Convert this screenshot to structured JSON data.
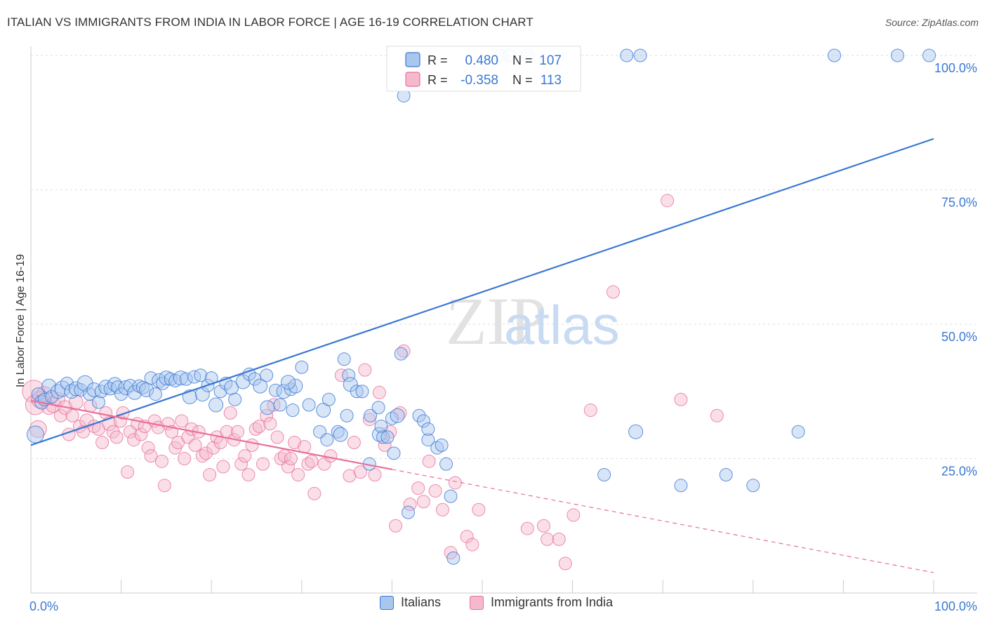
{
  "title": "ITALIAN VS IMMIGRANTS FROM INDIA IN LABOR FORCE | AGE 16-19 CORRELATION CHART",
  "source": "Source: ZipAtlas.com",
  "watermark": {
    "zip": "ZIP",
    "atlas": "atlas"
  },
  "colors": {
    "blue": "#3a78d4",
    "blue_fill": "#a9c6ee",
    "pink": "#e8709a",
    "pink_fill": "#f5b8cc",
    "axis_label": "#3a78d4",
    "grid": "#dddddd",
    "text": "#333333"
  },
  "legend_top": {
    "rows": [
      {
        "r_label": "R =",
        "r_value": "0.480",
        "n_label": "N =",
        "n_value": "107",
        "color": "blue"
      },
      {
        "r_label": "R =",
        "r_value": "-0.358",
        "n_label": "N =",
        "n_value": "113",
        "color": "pink"
      }
    ]
  },
  "legend_bottom": [
    {
      "label": "Italians",
      "color": "blue"
    },
    {
      "label": "Immigrants from India",
      "color": "pink"
    }
  ],
  "chart_data": {
    "type": "scatter",
    "title": "ITALIAN VS IMMIGRANTS FROM INDIA IN LABOR FORCE | AGE 16-19 CORRELATION CHART",
    "xlabel": "",
    "ylabel": "In Labor Force | Age 16-19",
    "xlim": [
      0,
      100
    ],
    "ylim": [
      0,
      100
    ],
    "x_tick_labels": [
      "0.0%",
      "100.0%"
    ],
    "y_ticks": [
      25,
      50,
      75,
      100
    ],
    "y_tick_labels": [
      "25.0%",
      "50.0%",
      "75.0%",
      "100.0%"
    ],
    "grid": true,
    "legend_position": "top-center",
    "series": [
      {
        "name": "Italians",
        "color": "#3a78d4",
        "r": 0.48,
        "n": 107,
        "trend": {
          "x": [
            0,
            100
          ],
          "y": [
            27.5,
            84.5
          ],
          "dashed_from": null
        },
        "points": [
          [
            0.5,
            29.5,
            12
          ],
          [
            0.8,
            37,
            9
          ],
          [
            1.2,
            35.5,
            10
          ],
          [
            1.5,
            36,
            9
          ],
          [
            2,
            38.5,
            10
          ],
          [
            2.3,
            36.5,
            9
          ],
          [
            3,
            37.5,
            10
          ],
          [
            3.5,
            38,
            11
          ],
          [
            4,
            39,
            9
          ],
          [
            4.5,
            37.5,
            10
          ],
          [
            5,
            38,
            10
          ],
          [
            5.5,
            37.8,
            9
          ],
          [
            6,
            39,
            11
          ],
          [
            6.5,
            37,
            9
          ],
          [
            7,
            37.8,
            10
          ],
          [
            7.5,
            35.5,
            9
          ],
          [
            7.8,
            37.5,
            9
          ],
          [
            8.3,
            38.3,
            10
          ],
          [
            8.8,
            38,
            9
          ],
          [
            9.3,
            38.8,
            10
          ],
          [
            9.6,
            38.3,
            9
          ],
          [
            10,
            37,
            9
          ],
          [
            10.5,
            38.2,
            10
          ],
          [
            11,
            38.6,
            9
          ],
          [
            11.5,
            37.3,
            10
          ],
          [
            12,
            38.5,
            9
          ],
          [
            12.4,
            38.2,
            9
          ],
          [
            12.8,
            37.8,
            10
          ],
          [
            13.3,
            40,
            9
          ],
          [
            13.8,
            37,
            9
          ],
          [
            14.2,
            39.5,
            10
          ],
          [
            14.6,
            39,
            9
          ],
          [
            15,
            40,
            10
          ],
          [
            15.5,
            39.8,
            9
          ],
          [
            16,
            39.5,
            9
          ],
          [
            16.6,
            40,
            10
          ],
          [
            17.2,
            39.8,
            9
          ],
          [
            17.6,
            36.5,
            10
          ],
          [
            18.1,
            40.2,
            9
          ],
          [
            18.8,
            40.5,
            9
          ],
          [
            19,
            37,
            10
          ],
          [
            19.6,
            38.6,
            9
          ],
          [
            20,
            40,
            9
          ],
          [
            20.5,
            35,
            10
          ],
          [
            21,
            37.5,
            9
          ],
          [
            21.6,
            39,
            9
          ],
          [
            22.2,
            38.2,
            10
          ],
          [
            22.6,
            36,
            9
          ],
          [
            23.5,
            39.3,
            10
          ],
          [
            24.2,
            40.7,
            9
          ],
          [
            24.8,
            39.8,
            9
          ],
          [
            25.4,
            38.5,
            10
          ],
          [
            26.1,
            40.5,
            9
          ],
          [
            26.2,
            34.5,
            10
          ],
          [
            27.1,
            37.7,
            9
          ],
          [
            27.6,
            35,
            9
          ],
          [
            28,
            37.5,
            10
          ],
          [
            28.8,
            37.9,
            9
          ],
          [
            29,
            34,
            9
          ],
          [
            29.3,
            38.5,
            10
          ],
          [
            30,
            42,
            9
          ],
          [
            30.8,
            35,
            9
          ],
          [
            32,
            30,
            9
          ],
          [
            32.4,
            34,
            10
          ],
          [
            32.8,
            28.5,
            9
          ],
          [
            33,
            36,
            9
          ],
          [
            34,
            30,
            9
          ],
          [
            34.3,
            29.5,
            10
          ],
          [
            34.7,
            43.5,
            9
          ],
          [
            35.2,
            40.5,
            9
          ],
          [
            35.4,
            38.8,
            10
          ],
          [
            36.1,
            37.5,
            9
          ],
          [
            37.5,
            24,
            9
          ],
          [
            37.6,
            33,
            9
          ],
          [
            38.5,
            34.5,
            9
          ],
          [
            38.6,
            29.5,
            10
          ],
          [
            38.8,
            31,
            9
          ],
          [
            39,
            29,
            9
          ],
          [
            40,
            32.5,
            9
          ],
          [
            40.2,
            26,
            9
          ],
          [
            40.6,
            33,
            10
          ],
          [
            41,
            44.5,
            9
          ],
          [
            41.3,
            92.5,
            9
          ],
          [
            41.8,
            15,
            9
          ],
          [
            43,
            33,
            9
          ],
          [
            44,
            28.5,
            9
          ],
          [
            45,
            27,
            9
          ],
          [
            45.5,
            27.5,
            9
          ],
          [
            46,
            24,
            9
          ],
          [
            46.5,
            18,
            9
          ],
          [
            46.8,
            6.5,
            9
          ],
          [
            53,
            100,
            9
          ],
          [
            52,
            100,
            9
          ],
          [
            55,
            100,
            9
          ],
          [
            66,
            100,
            9
          ],
          [
            67,
            30,
            10
          ],
          [
            63.5,
            22,
            9
          ],
          [
            67.5,
            100,
            9
          ],
          [
            72,
            20,
            9
          ],
          [
            77,
            22,
            9
          ],
          [
            80,
            20,
            9
          ],
          [
            85,
            30,
            9
          ],
          [
            89,
            100,
            9
          ],
          [
            96,
            100,
            9
          ],
          [
            99.5,
            100,
            9
          ],
          [
            39.5,
            29,
            9
          ],
          [
            43.5,
            32,
            9
          ],
          [
            44,
            30.5,
            9
          ],
          [
            36.7,
            37.5,
            9
          ],
          [
            35,
            33,
            9
          ],
          [
            28.5,
            39.2,
            10
          ]
        ]
      },
      {
        "name": "Immigrants from India",
        "color": "#e8709a",
        "r": -0.358,
        "n": 113,
        "trend": {
          "x": [
            0,
            100
          ],
          "y": [
            35.8,
            3.8
          ],
          "dashed_from": 40
        },
        "points": [
          [
            0.3,
            37.5,
            16
          ],
          [
            0.5,
            35,
            14
          ],
          [
            0.8,
            30.5,
            12
          ],
          [
            1,
            36,
            12
          ],
          [
            1.5,
            37,
            11
          ],
          [
            2,
            34.5,
            10
          ],
          [
            2.5,
            35,
            11
          ],
          [
            3,
            36,
            10
          ],
          [
            3.3,
            33,
            9
          ],
          [
            3.8,
            34.5,
            10
          ],
          [
            4.2,
            29.5,
            9
          ],
          [
            4.6,
            33,
            9
          ],
          [
            5,
            35.5,
            10
          ],
          [
            5.4,
            31,
            9
          ],
          [
            5.8,
            30,
            9
          ],
          [
            6.2,
            32,
            10
          ],
          [
            6.6,
            34.8,
            9
          ],
          [
            7,
            31,
            9
          ],
          [
            7.5,
            30.5,
            9
          ],
          [
            7.9,
            28,
            9
          ],
          [
            8.3,
            33.5,
            9
          ],
          [
            8.7,
            31.5,
            10
          ],
          [
            9.1,
            30,
            9
          ],
          [
            9.5,
            29,
            9
          ],
          [
            9.9,
            32,
            9
          ],
          [
            10.2,
            33.5,
            9
          ],
          [
            10.7,
            22.5,
            9
          ],
          [
            11,
            30,
            9
          ],
          [
            11.4,
            28.5,
            9
          ],
          [
            11.8,
            31.5,
            9
          ],
          [
            12.2,
            29.5,
            9
          ],
          [
            12.6,
            31,
            9
          ],
          [
            13,
            27,
            9
          ],
          [
            13.3,
            25.5,
            9
          ],
          [
            13.7,
            32,
            9
          ],
          [
            14.1,
            30.8,
            9
          ],
          [
            14.5,
            24.5,
            9
          ],
          [
            14.8,
            20,
            9
          ],
          [
            15.2,
            31.5,
            9
          ],
          [
            15.6,
            30,
            9
          ],
          [
            16,
            27,
            9
          ],
          [
            16.3,
            28,
            9
          ],
          [
            16.7,
            32,
            9
          ],
          [
            17,
            25,
            9
          ],
          [
            17.4,
            29,
            9
          ],
          [
            17.8,
            30.5,
            9
          ],
          [
            18.2,
            27.5,
            9
          ],
          [
            18.6,
            30,
            9
          ],
          [
            19,
            25.5,
            9
          ],
          [
            19.4,
            26,
            9
          ],
          [
            19.8,
            22,
            9
          ],
          [
            20.2,
            27,
            9
          ],
          [
            20.6,
            29,
            9
          ],
          [
            21,
            28,
            9
          ],
          [
            21.3,
            23.5,
            9
          ],
          [
            21.7,
            30,
            9
          ],
          [
            22.1,
            33.5,
            9
          ],
          [
            22.5,
            28.5,
            9
          ],
          [
            22.9,
            30,
            9
          ],
          [
            23.3,
            24,
            9
          ],
          [
            23.7,
            25.5,
            9
          ],
          [
            24.1,
            22,
            9
          ],
          [
            24.5,
            27.5,
            9
          ],
          [
            24.9,
            30.5,
            9
          ],
          [
            25.3,
            31,
            9
          ],
          [
            25.7,
            24,
            9
          ],
          [
            26.1,
            33,
            9
          ],
          [
            26.5,
            31.5,
            9
          ],
          [
            26.9,
            35,
            9
          ],
          [
            27.3,
            29,
            9
          ],
          [
            27.7,
            25,
            9
          ],
          [
            28.1,
            25.5,
            9
          ],
          [
            28.5,
            23.5,
            9
          ],
          [
            28.8,
            25,
            9
          ],
          [
            29.2,
            28,
            9
          ],
          [
            29.6,
            22,
            9
          ],
          [
            30.3,
            27.2,
            9
          ],
          [
            30.7,
            24,
            9
          ],
          [
            31.1,
            24.5,
            9
          ],
          [
            31.4,
            18.5,
            9
          ],
          [
            32.5,
            24,
            9
          ],
          [
            33.2,
            25.5,
            9
          ],
          [
            34.4,
            40.5,
            9
          ],
          [
            35.3,
            21.8,
            9
          ],
          [
            35.8,
            28,
            9
          ],
          [
            36.5,
            22.5,
            9
          ],
          [
            37,
            41.5,
            9
          ],
          [
            37.5,
            32.3,
            9
          ],
          [
            38.1,
            22,
            9
          ],
          [
            38.6,
            37.3,
            9
          ],
          [
            39.2,
            27.5,
            9
          ],
          [
            39.8,
            30,
            9
          ],
          [
            40.4,
            12.5,
            9
          ],
          [
            40.9,
            33.5,
            9
          ],
          [
            41.3,
            45,
            9
          ],
          [
            42,
            16.5,
            9
          ],
          [
            42.9,
            19.5,
            9
          ],
          [
            43.5,
            17,
            9
          ],
          [
            44.1,
            24.5,
            9
          ],
          [
            44.8,
            19,
            9
          ],
          [
            45.6,
            15.5,
            9
          ],
          [
            46.5,
            7.5,
            9
          ],
          [
            47,
            20.5,
            9
          ],
          [
            48.3,
            10.5,
            9
          ],
          [
            48.9,
            9,
            9
          ],
          [
            49.6,
            15.5,
            9
          ],
          [
            55,
            12,
            9
          ],
          [
            56.8,
            12.5,
            9
          ],
          [
            57.2,
            10,
            9
          ],
          [
            58.5,
            10,
            9
          ],
          [
            59.2,
            5.5,
            9
          ],
          [
            60.1,
            14.5,
            9
          ],
          [
            62,
            34,
            9
          ],
          [
            64.5,
            56,
            9
          ],
          [
            70.5,
            73,
            9
          ],
          [
            72,
            36,
            9
          ],
          [
            76,
            33,
            9
          ]
        ]
      }
    ]
  },
  "axes": {
    "y_axis_title": "In Labor Force | Age 16-19",
    "x_min_label": "0.0%",
    "x_max_label": "100.0%"
  }
}
